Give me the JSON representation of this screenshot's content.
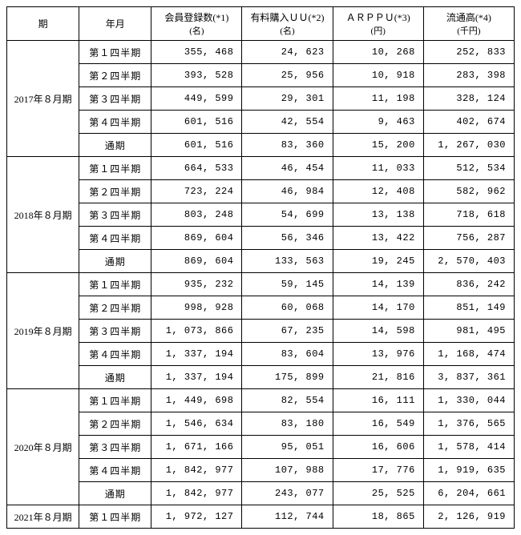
{
  "headers": {
    "period": "期",
    "ym": "年月",
    "members_top": "会員登録数(*1)",
    "members_sub": "(名)",
    "paiduu_top": "有料購入ＵＵ(*2)",
    "paiduu_sub": "(名)",
    "arppu_top": "ＡＲＰＰＵ(*3)",
    "arppu_sub": "(円)",
    "gmv_top": "流通高(*4)",
    "gmv_sub": "(千円)"
  },
  "periods": [
    {
      "label": "2017年８月期",
      "rows": [
        {
          "ym": "第１四半期",
          "members": "355, 468",
          "paiduu": "24, 623",
          "arppu": "10, 268",
          "gmv": "252, 833"
        },
        {
          "ym": "第２四半期",
          "members": "393, 528",
          "paiduu": "25, 956",
          "arppu": "10, 918",
          "gmv": "283, 398"
        },
        {
          "ym": "第３四半期",
          "members": "449, 599",
          "paiduu": "29, 301",
          "arppu": "11, 198",
          "gmv": "328, 124"
        },
        {
          "ym": "第４四半期",
          "members": "601, 516",
          "paiduu": "42, 554",
          "arppu": "9, 463",
          "gmv": "402, 674"
        },
        {
          "ym": "通期",
          "members": "601, 516",
          "paiduu": "83, 360",
          "arppu": "15, 200",
          "gmv": "1, 267, 030"
        }
      ]
    },
    {
      "label": "2018年８月期",
      "rows": [
        {
          "ym": "第１四半期",
          "members": "664, 533",
          "paiduu": "46, 454",
          "arppu": "11, 033",
          "gmv": "512, 534"
        },
        {
          "ym": "第２四半期",
          "members": "723, 224",
          "paiduu": "46, 984",
          "arppu": "12, 408",
          "gmv": "582, 962"
        },
        {
          "ym": "第３四半期",
          "members": "803, 248",
          "paiduu": "54, 699",
          "arppu": "13, 138",
          "gmv": "718, 618"
        },
        {
          "ym": "第４四半期",
          "members": "869, 604",
          "paiduu": "56, 346",
          "arppu": "13, 422",
          "gmv": "756, 287"
        },
        {
          "ym": "通期",
          "members": "869, 604",
          "paiduu": "133, 563",
          "arppu": "19, 245",
          "gmv": "2, 570, 403"
        }
      ]
    },
    {
      "label": "2019年８月期",
      "rows": [
        {
          "ym": "第１四半期",
          "members": "935, 232",
          "paiduu": "59, 145",
          "arppu": "14, 139",
          "gmv": "836, 242"
        },
        {
          "ym": "第２四半期",
          "members": "998, 928",
          "paiduu": "60, 068",
          "arppu": "14, 170",
          "gmv": "851, 149"
        },
        {
          "ym": "第３四半期",
          "members": "1, 073, 866",
          "paiduu": "67, 235",
          "arppu": "14, 598",
          "gmv": "981, 495"
        },
        {
          "ym": "第４四半期",
          "members": "1, 337, 194",
          "paiduu": "83, 604",
          "arppu": "13, 976",
          "gmv": "1, 168, 474"
        },
        {
          "ym": "通期",
          "members": "1, 337, 194",
          "paiduu": "175, 899",
          "arppu": "21, 816",
          "gmv": "3, 837, 361"
        }
      ]
    },
    {
      "label": "2020年８月期",
      "rows": [
        {
          "ym": "第１四半期",
          "members": "1, 449, 698",
          "paiduu": "82, 554",
          "arppu": "16, 111",
          "gmv": "1, 330, 044"
        },
        {
          "ym": "第２四半期",
          "members": "1, 546, 634",
          "paiduu": "83, 180",
          "arppu": "16, 549",
          "gmv": "1, 376, 565"
        },
        {
          "ym": "第３四半期",
          "members": "1, 671, 166",
          "paiduu": "95, 051",
          "arppu": "16, 606",
          "gmv": "1, 578, 414"
        },
        {
          "ym": "第４四半期",
          "members": "1, 842, 977",
          "paiduu": "107, 988",
          "arppu": "17, 776",
          "gmv": "1, 919, 635"
        },
        {
          "ym": "通期",
          "members": "1, 842, 977",
          "paiduu": "243, 077",
          "arppu": "25, 525",
          "gmv": "6, 204, 661"
        }
      ]
    },
    {
      "label": "2021年８月期",
      "rows": [
        {
          "ym": "第１四半期",
          "members": "1, 972, 127",
          "paiduu": "112, 744",
          "arppu": "18, 865",
          "gmv": "2, 126, 919"
        }
      ]
    }
  ]
}
